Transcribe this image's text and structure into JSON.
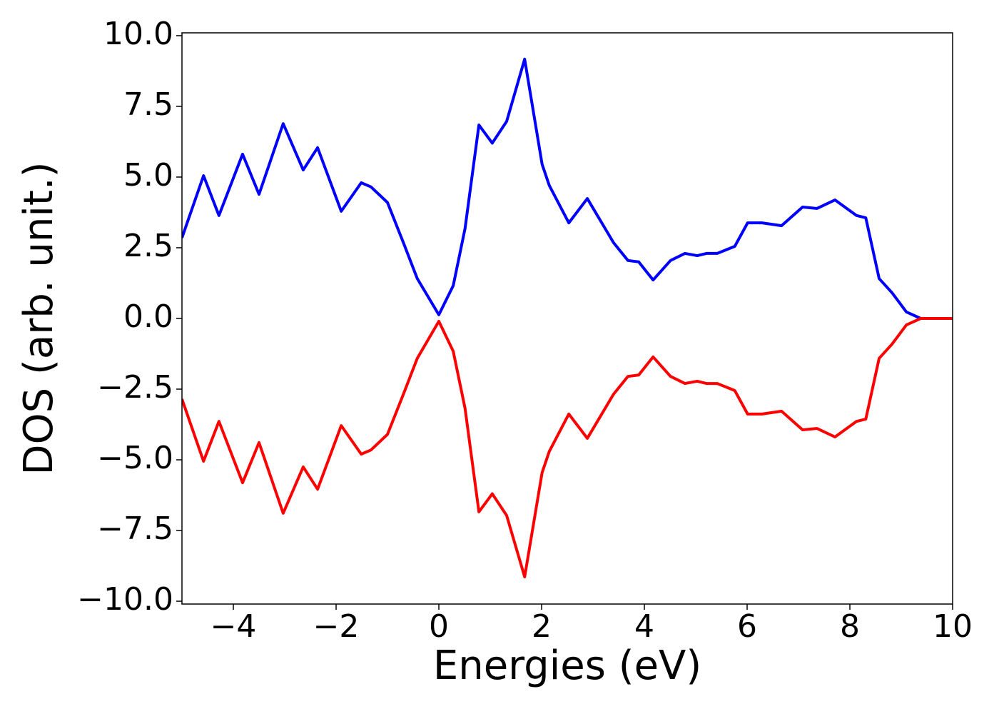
{
  "chart_data": {
    "type": "line",
    "x_label": "Energies (eV)",
    "y_label": "DOS (arb. unit.)",
    "xlim": [
      -5,
      10
    ],
    "ylim": [
      -10.1,
      10.1
    ],
    "xticks": [
      {
        "value": -4,
        "label": "−4"
      },
      {
        "value": -2,
        "label": "−2"
      },
      0,
      2,
      4,
      6,
      8,
      10
    ],
    "yticks": [
      {
        "value": -10,
        "label": "−10.0"
      },
      {
        "value": -7.5,
        "label": "−7.5"
      },
      {
        "value": -5,
        "label": "−5.0"
      },
      {
        "value": -2.5,
        "label": "−2.5"
      },
      {
        "value": 0,
        "label": "0.0"
      },
      2.5,
      {
        "value": 5,
        "label": "5.0"
      },
      7.5,
      {
        "value": 10,
        "label": "10.0"
      }
    ],
    "grid": false,
    "x": [
      -5,
      -4.58,
      -4.28,
      -3.82,
      -3.5,
      -3.03,
      -2.64,
      -2.36,
      -1.9,
      -1.51,
      -1.32,
      -1.0,
      -0.69,
      -0.42,
      0,
      0.28,
      0.51,
      0.78,
      1.04,
      1.32,
      1.67,
      2.01,
      2.15,
      2.53,
      2.89,
      3.4,
      3.68,
      3.89,
      4.17,
      4.51,
      4.79,
      5.03,
      5.21,
      5.42,
      5.76,
      6.01,
      6.29,
      6.67,
      7.08,
      7.36,
      7.71,
      8.13,
      8.31,
      8.57,
      8.82,
      9.1,
      9.38,
      10
    ],
    "series": [
      {
        "color": "#0000ff",
        "values": [
          2.85,
          5.05,
          3.64,
          5.81,
          4.39,
          6.89,
          5.25,
          6.04,
          3.79,
          4.8,
          4.65,
          4.1,
          2.68,
          1.41,
          0.13,
          1.16,
          3.18,
          6.84,
          6.2,
          6.97,
          9.17,
          5.45,
          4.7,
          3.38,
          4.24,
          2.68,
          2.05,
          2.0,
          1.36,
          2.05,
          2.3,
          2.22,
          2.3,
          2.3,
          2.55,
          3.38,
          3.38,
          3.28,
          3.94,
          3.89,
          4.19,
          3.64,
          3.56,
          1.41,
          0.91,
          0.23,
          0,
          0
        ]
      },
      {
        "color": "#ff0000",
        "values": [
          -2.85,
          -5.05,
          -3.64,
          -5.81,
          -4.39,
          -6.89,
          -5.25,
          -6.04,
          -3.79,
          -4.8,
          -4.65,
          -4.1,
          -2.68,
          -1.41,
          -0.1,
          -1.16,
          -3.18,
          -6.84,
          -6.2,
          -6.97,
          -9.14,
          -5.45,
          -4.7,
          -3.38,
          -4.24,
          -2.68,
          -2.05,
          -2.0,
          -1.36,
          -2.05,
          -2.3,
          -2.22,
          -2.3,
          -2.3,
          -2.55,
          -3.38,
          -3.38,
          -3.28,
          -3.94,
          -3.89,
          -4.19,
          -3.64,
          -3.56,
          -1.41,
          -0.91,
          -0.23,
          0,
          0
        ]
      }
    ]
  }
}
